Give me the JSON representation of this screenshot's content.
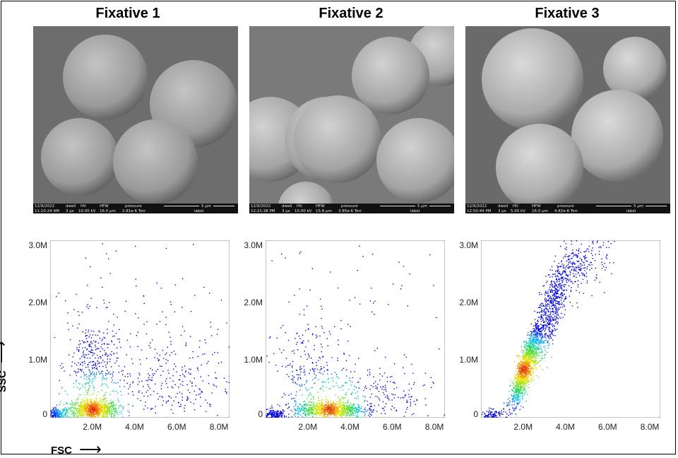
{
  "panels": [
    {
      "title": "Fixative 1",
      "sem_info": {
        "date": "12/9/2022",
        "time": "11:10:24 AM",
        "dwell_label": "dwell",
        "dwell": "3 µs",
        "hv_label": "HV",
        "hv": "10.00 kV",
        "hfw_label": "HFW",
        "hfw": "16.0 µm",
        "pressure_label": "pressure",
        "pressure": "2.81e-6 Torr",
        "scale": "5 µm",
        "label": "label"
      }
    },
    {
      "title": "Fixative 2",
      "sem_info": {
        "date": "12/9/2022",
        "time": "12:21:38 PM",
        "dwell_label": "dwell",
        "dwell": "3 µs",
        "hv_label": "HV",
        "hv": "10.00 kV",
        "hfw_label": "HFW",
        "hfw": "15.8 µm",
        "pressure_label": "pressure",
        "pressure": "3.85e-6 Torr",
        "scale": "5 µm",
        "label": "label"
      }
    },
    {
      "title": "Fixative 3",
      "sem_info": {
        "date": "12/9/2022",
        "time": "12:50:44 PM",
        "dwell_label": "dwell",
        "dwell": "3 µs",
        "hv_label": "HV",
        "hv": "5.00 kV",
        "hfw_label": "HFW",
        "hfw": "16.0 µm",
        "pressure_label": "pressure",
        "pressure": "4.82e-6 Torr",
        "scale": "5 µm",
        "label": "label"
      }
    }
  ],
  "axes": {
    "x_title": "FSC",
    "y_title": "SSC",
    "x_arrow": "⟶",
    "y_arrow": "⟶"
  },
  "chart_data": [
    {
      "type": "scatter",
      "name_hint": "fixative-1",
      "xlim": [
        0,
        8.5
      ],
      "ylim": [
        0,
        3.1
      ],
      "xticks": [
        "2.0M",
        "4.0M",
        "6.0M",
        "8.0M"
      ],
      "xtick_values": [
        2,
        4,
        6,
        8
      ],
      "yticks": [
        "0",
        "1.0M",
        "2.0M",
        "3.0M"
      ],
      "ytick_values": [
        0,
        1,
        2,
        3
      ],
      "density_center": [
        2.0,
        0.15
      ],
      "description_clusters": [
        {
          "cx": 2.0,
          "cy": 0.15,
          "sx": 0.6,
          "sy": 0.08,
          "n": 900
        },
        {
          "cx": 0.3,
          "cy": 0.05,
          "sx": 0.25,
          "sy": 0.06,
          "n": 250
        },
        {
          "cx": 2.0,
          "cy": 0.9,
          "sx": 0.6,
          "sy": 0.4,
          "n": 350
        },
        {
          "cx": 5.5,
          "cy": 0.6,
          "sx": 1.6,
          "sy": 0.4,
          "n": 300
        },
        {
          "cx": 4.0,
          "cy": 1.8,
          "sx": 2.5,
          "sy": 0.8,
          "n": 120
        }
      ]
    },
    {
      "type": "scatter",
      "name_hint": "fixative-2",
      "xlim": [
        0,
        8.5
      ],
      "ylim": [
        0,
        3.1
      ],
      "xticks": [
        "2.0M",
        "4.0M",
        "6.0M",
        "8.0M"
      ],
      "xtick_values": [
        2,
        4,
        6,
        8
      ],
      "yticks": [
        "0",
        "1.0M",
        "2.0M",
        "3.0M"
      ],
      "ytick_values": [
        0,
        1,
        2,
        3
      ],
      "density_center": [
        3.0,
        0.15
      ],
      "description_clusters": [
        {
          "cx": 3.0,
          "cy": 0.15,
          "sx": 0.8,
          "sy": 0.07,
          "n": 900
        },
        {
          "cx": 0.4,
          "cy": 0.05,
          "sx": 0.3,
          "sy": 0.05,
          "n": 200
        },
        {
          "cx": 2.0,
          "cy": 0.8,
          "sx": 0.8,
          "sy": 0.4,
          "n": 220
        },
        {
          "cx": 5.0,
          "cy": 0.4,
          "sx": 1.5,
          "sy": 0.3,
          "n": 250
        },
        {
          "cx": 3.5,
          "cy": 1.8,
          "sx": 2.5,
          "sy": 0.8,
          "n": 90
        }
      ]
    },
    {
      "type": "scatter",
      "name_hint": "fixative-3",
      "xlim": [
        0,
        8.5
      ],
      "ylim": [
        0,
        3.1
      ],
      "xticks": [
        "2.0M",
        "4.0M",
        "6.0M",
        "8.0M"
      ],
      "xtick_values": [
        2,
        4,
        6,
        8
      ],
      "yticks": [
        "0",
        "1.0M",
        "2.0M",
        "3.0M"
      ],
      "ytick_values": [
        0,
        1,
        2,
        3
      ],
      "density_center": [
        2.0,
        0.85
      ],
      "description_clusters": [
        {
          "cx": 2.1,
          "cy": 0.9,
          "sx": 0.35,
          "sy": 0.35,
          "n": 1300,
          "corr": 0.85
        },
        {
          "cx": 3.3,
          "cy": 1.9,
          "sx": 0.5,
          "sy": 0.5,
          "n": 700,
          "corr": 0.8
        },
        {
          "cx": 4.8,
          "cy": 2.7,
          "sx": 0.7,
          "sy": 0.3,
          "n": 250,
          "corr": 0.5
        },
        {
          "cx": 0.5,
          "cy": 0.05,
          "sx": 0.3,
          "sy": 0.05,
          "n": 120
        }
      ]
    }
  ]
}
